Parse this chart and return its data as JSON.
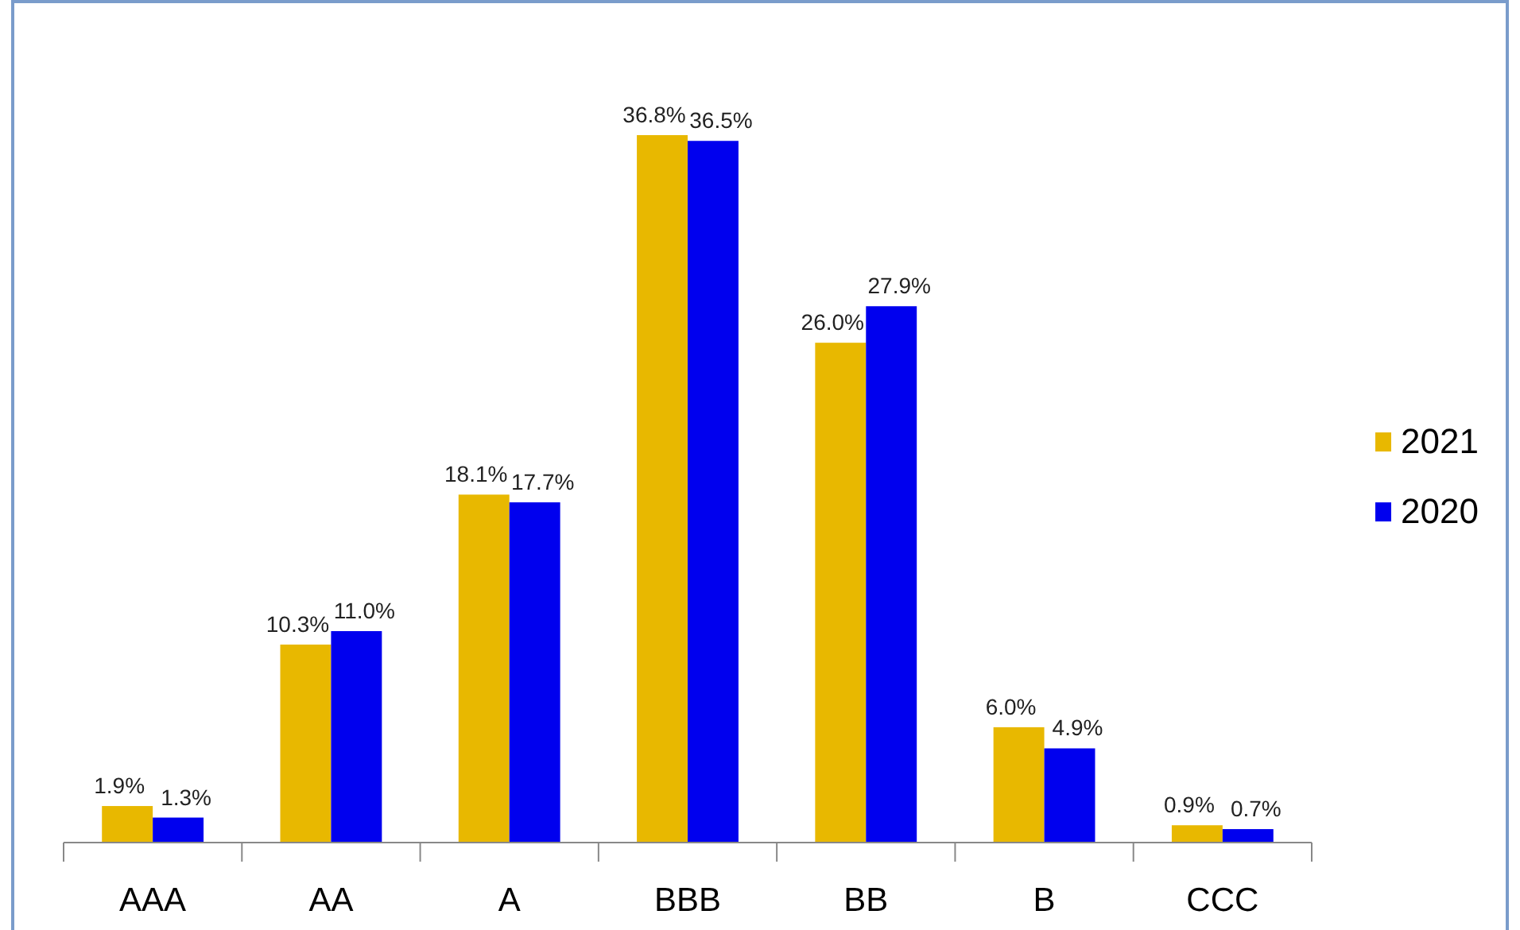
{
  "chart_data": {
    "type": "bar",
    "categories": [
      "AAA",
      "AA",
      "A",
      "BBB",
      "BB",
      "B",
      "CCC"
    ],
    "series": [
      {
        "name": "2021",
        "color": "#e8b800",
        "values": [
          1.9,
          10.3,
          18.1,
          36.8,
          26.0,
          6.0,
          0.9
        ],
        "value_labels": [
          "1.9%",
          "10.3%",
          "18.1%",
          "36.8%",
          "26.0%",
          "6.0%",
          "0.9%"
        ]
      },
      {
        "name": "2020",
        "color": "#0000ee",
        "values": [
          1.3,
          11.0,
          17.7,
          36.5,
          27.9,
          4.9,
          0.7
        ],
        "value_labels": [
          "1.3%",
          "11.0%",
          "17.7%",
          "36.5%",
          "27.9%",
          "4.9%",
          "0.7%"
        ]
      }
    ],
    "legend": "right"
  }
}
